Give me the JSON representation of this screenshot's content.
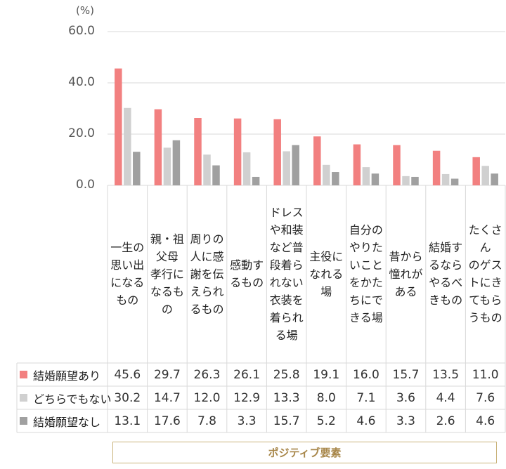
{
  "colors": {
    "series_1": "#f28080",
    "series_2": "#d0d0d0",
    "series_3": "#a0a0a0",
    "grid": "#d9d9d9",
    "banner_text": "#a8874a",
    "banner_border": "#c9b37a"
  },
  "chart_data": {
    "type": "bar",
    "unit_label": "(%)",
    "ylim": [
      0,
      60
    ],
    "yticks": [
      "0.0",
      "20.0",
      "40.0",
      "60.0"
    ],
    "grid": true,
    "categories": [
      "一生の\n思い出\nになる\nもの",
      "親・祖\n父母\n孝行に\nなるも\nの",
      "周りの\n人に感\n謝を伝\nえられ\nるもの",
      "感動す\nるもの",
      "ドレス\nや和装\nなど普\n段着ら\nれない\n衣装を\n着られ\nる場",
      "主役に\nなれる\n場",
      "自分の\nやりた\nいこと\nをかた\nちにで\nきる場",
      "昔から\n憧れが\nある",
      "結婚す\nるなら\nやるべ\nきもの",
      "たくさん\nのゲス\nトにき\nてもら\nうもの"
    ],
    "series": [
      {
        "name": "結婚願望あり",
        "values": [
          45.6,
          29.7,
          26.3,
          26.1,
          25.8,
          19.1,
          16.0,
          15.7,
          13.5,
          11.0
        ],
        "labels": [
          "45.6",
          "29.7",
          "26.3",
          "26.1",
          "25.8",
          "19.1",
          "16.0",
          "15.7",
          "13.5",
          "11.0"
        ]
      },
      {
        "name": "どちらでもない",
        "values": [
          30.2,
          14.7,
          12.0,
          12.9,
          13.3,
          8.0,
          7.1,
          3.6,
          4.4,
          7.6
        ],
        "labels": [
          "30.2",
          "14.7",
          "12.0",
          "12.9",
          "13.3",
          "8.0",
          "7.1",
          "3.6",
          "4.4",
          "7.6"
        ]
      },
      {
        "name": "結婚願望なし",
        "values": [
          13.1,
          17.6,
          7.8,
          3.3,
          15.7,
          5.2,
          4.6,
          3.3,
          2.6,
          4.6
        ],
        "labels": [
          "13.1",
          "17.6",
          "7.8",
          "3.3",
          "15.7",
          "5.2",
          "4.6",
          "3.3",
          "2.6",
          "4.6"
        ]
      }
    ],
    "group_label": "ポジティブ要素"
  }
}
